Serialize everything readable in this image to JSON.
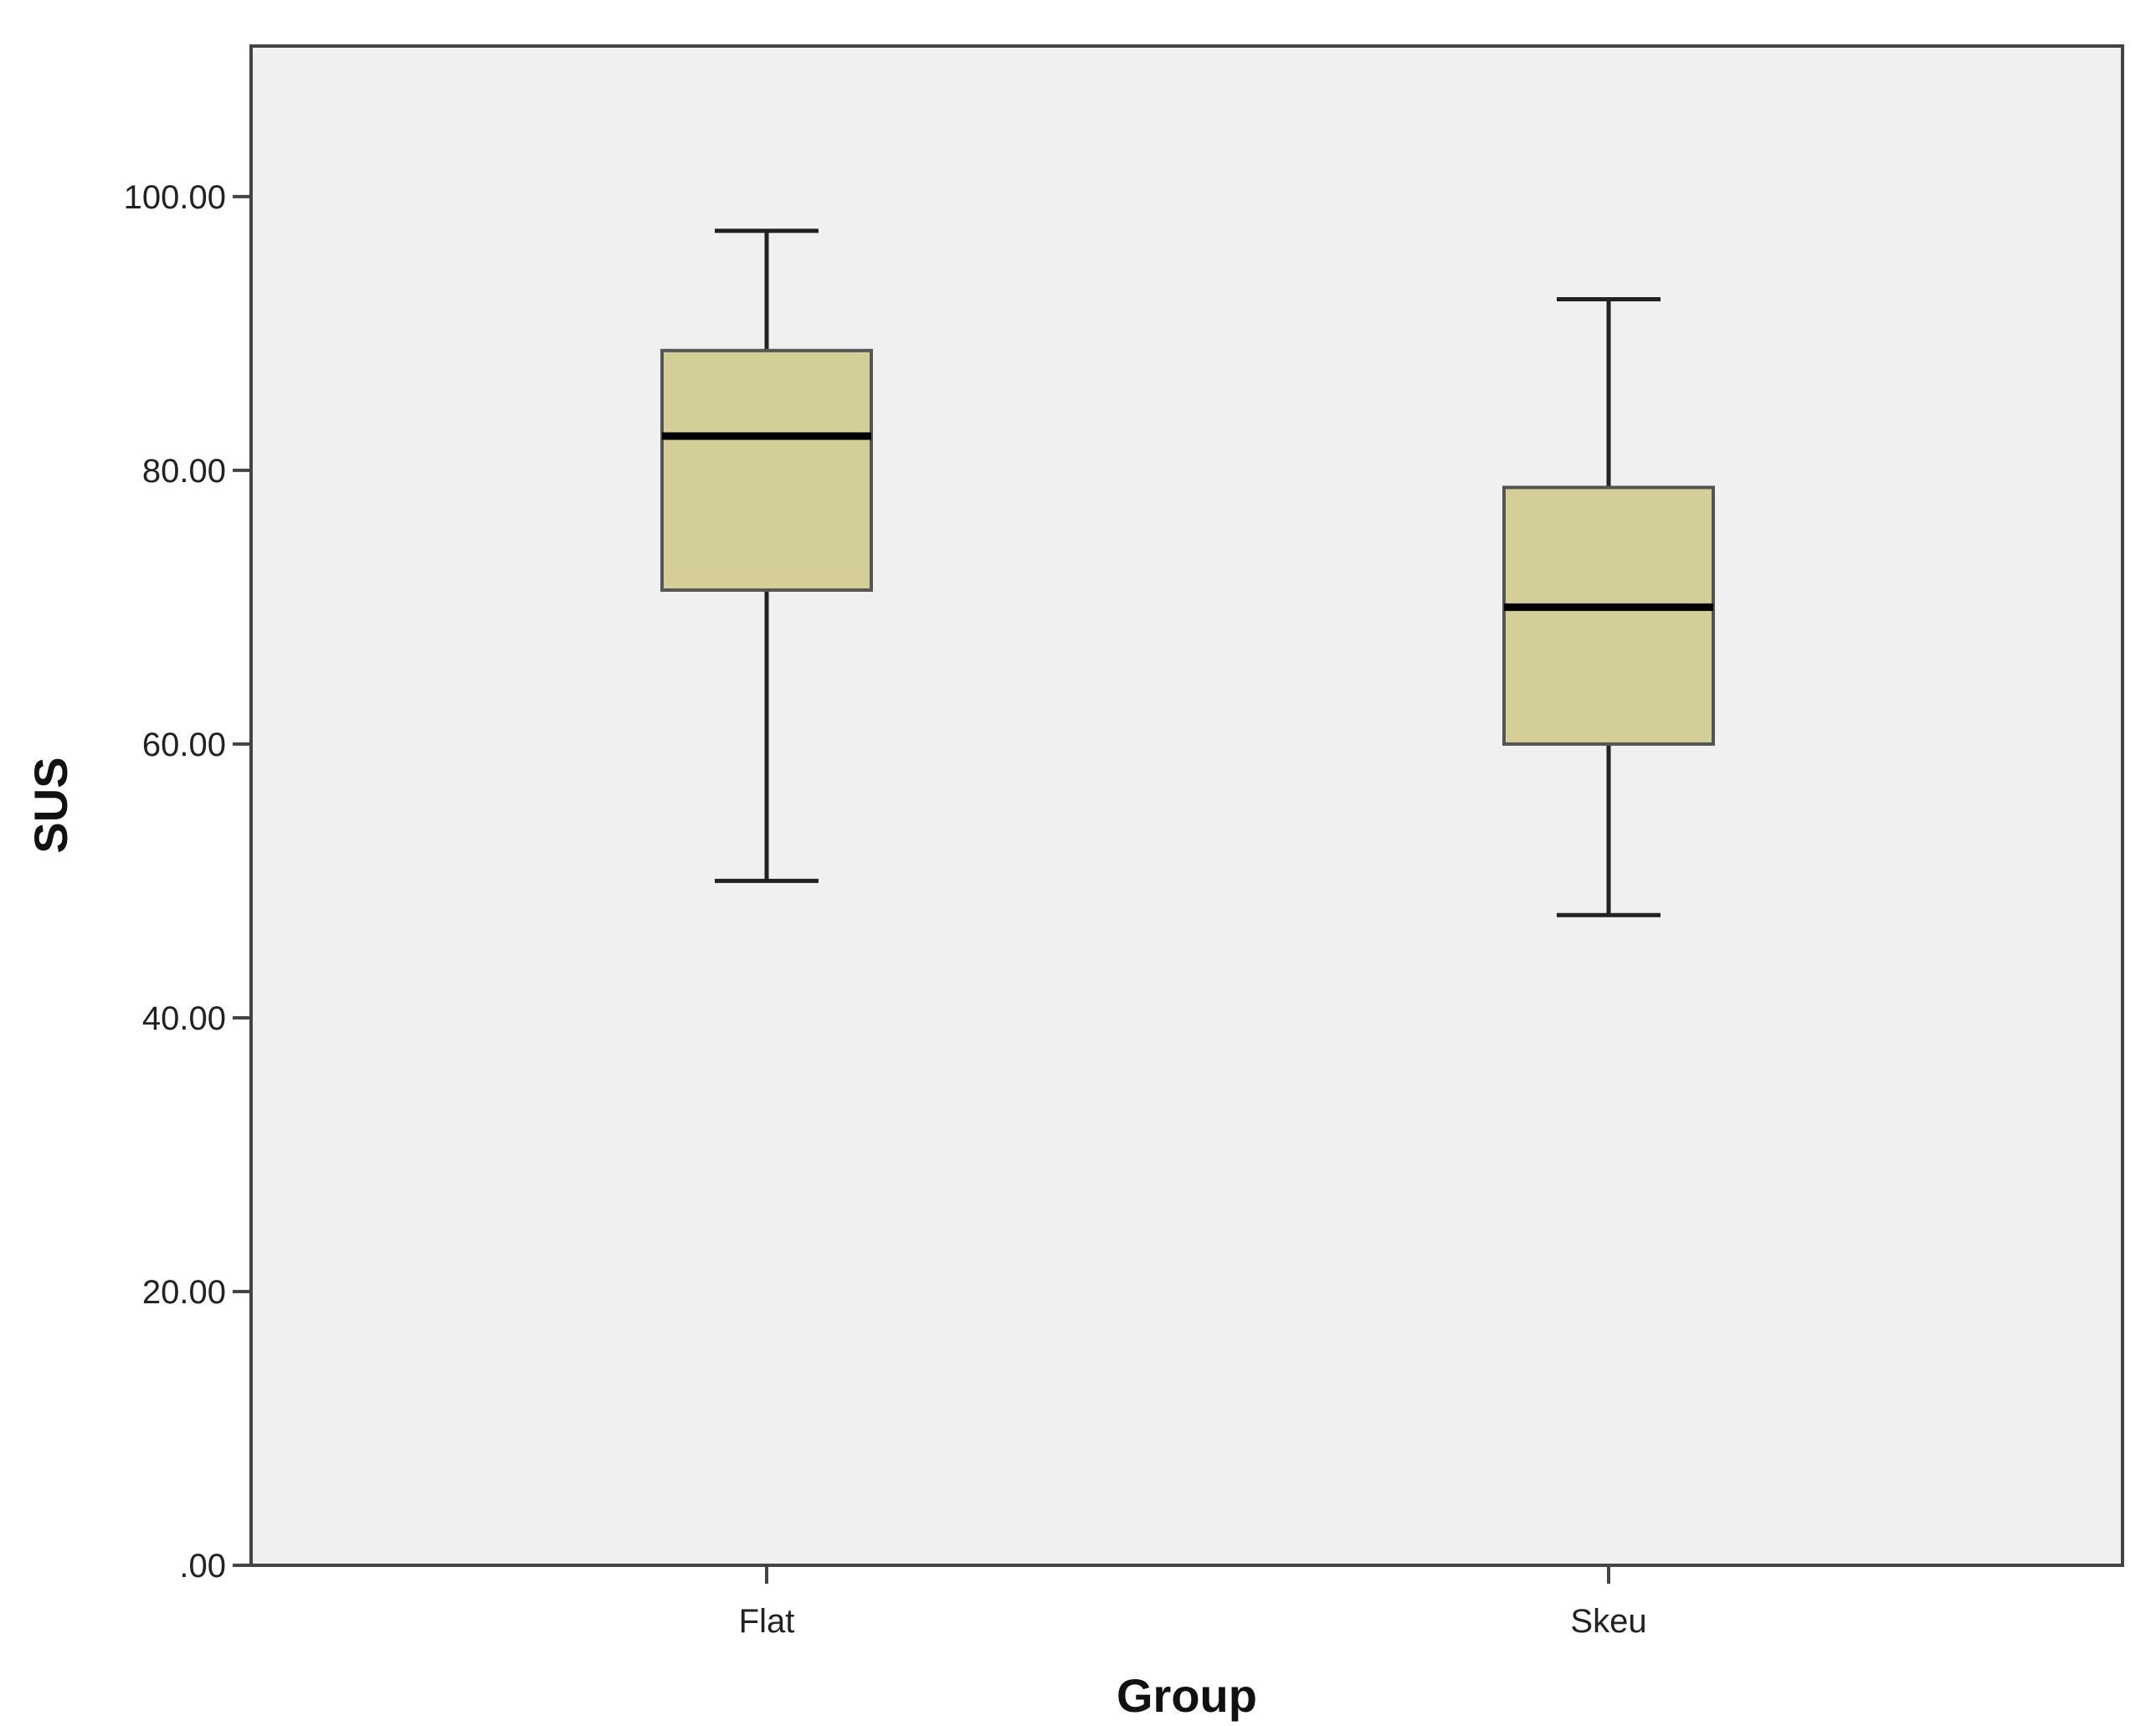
{
  "chart_data": {
    "type": "boxplot",
    "xlabel": "Group",
    "ylabel": "SUS",
    "categories": [
      "Flat",
      "Skeu"
    ],
    "boxes": [
      {
        "category": "Flat",
        "min": 50.0,
        "q1": 71.25,
        "median": 82.5,
        "q3": 88.75,
        "max": 97.5
      },
      {
        "category": "Skeu",
        "min": 47.5,
        "q1": 60.0,
        "median": 70.0,
        "q3": 78.75,
        "max": 92.5
      }
    ],
    "ylim": [
      0,
      111
    ],
    "yticks": [
      0,
      20,
      40,
      60,
      80,
      100
    ],
    "ytick_labels": [
      ".00",
      "20.00",
      "40.00",
      "60.00",
      "80.00",
      "100.00"
    ],
    "grid": false,
    "legend": "none",
    "colors": {
      "box_fill": "#d4cf98",
      "box_stroke": "#555555",
      "median": "#000000",
      "whisker": "#222222",
      "plot_background": "#f0f0f0",
      "frame": "#444444"
    }
  }
}
